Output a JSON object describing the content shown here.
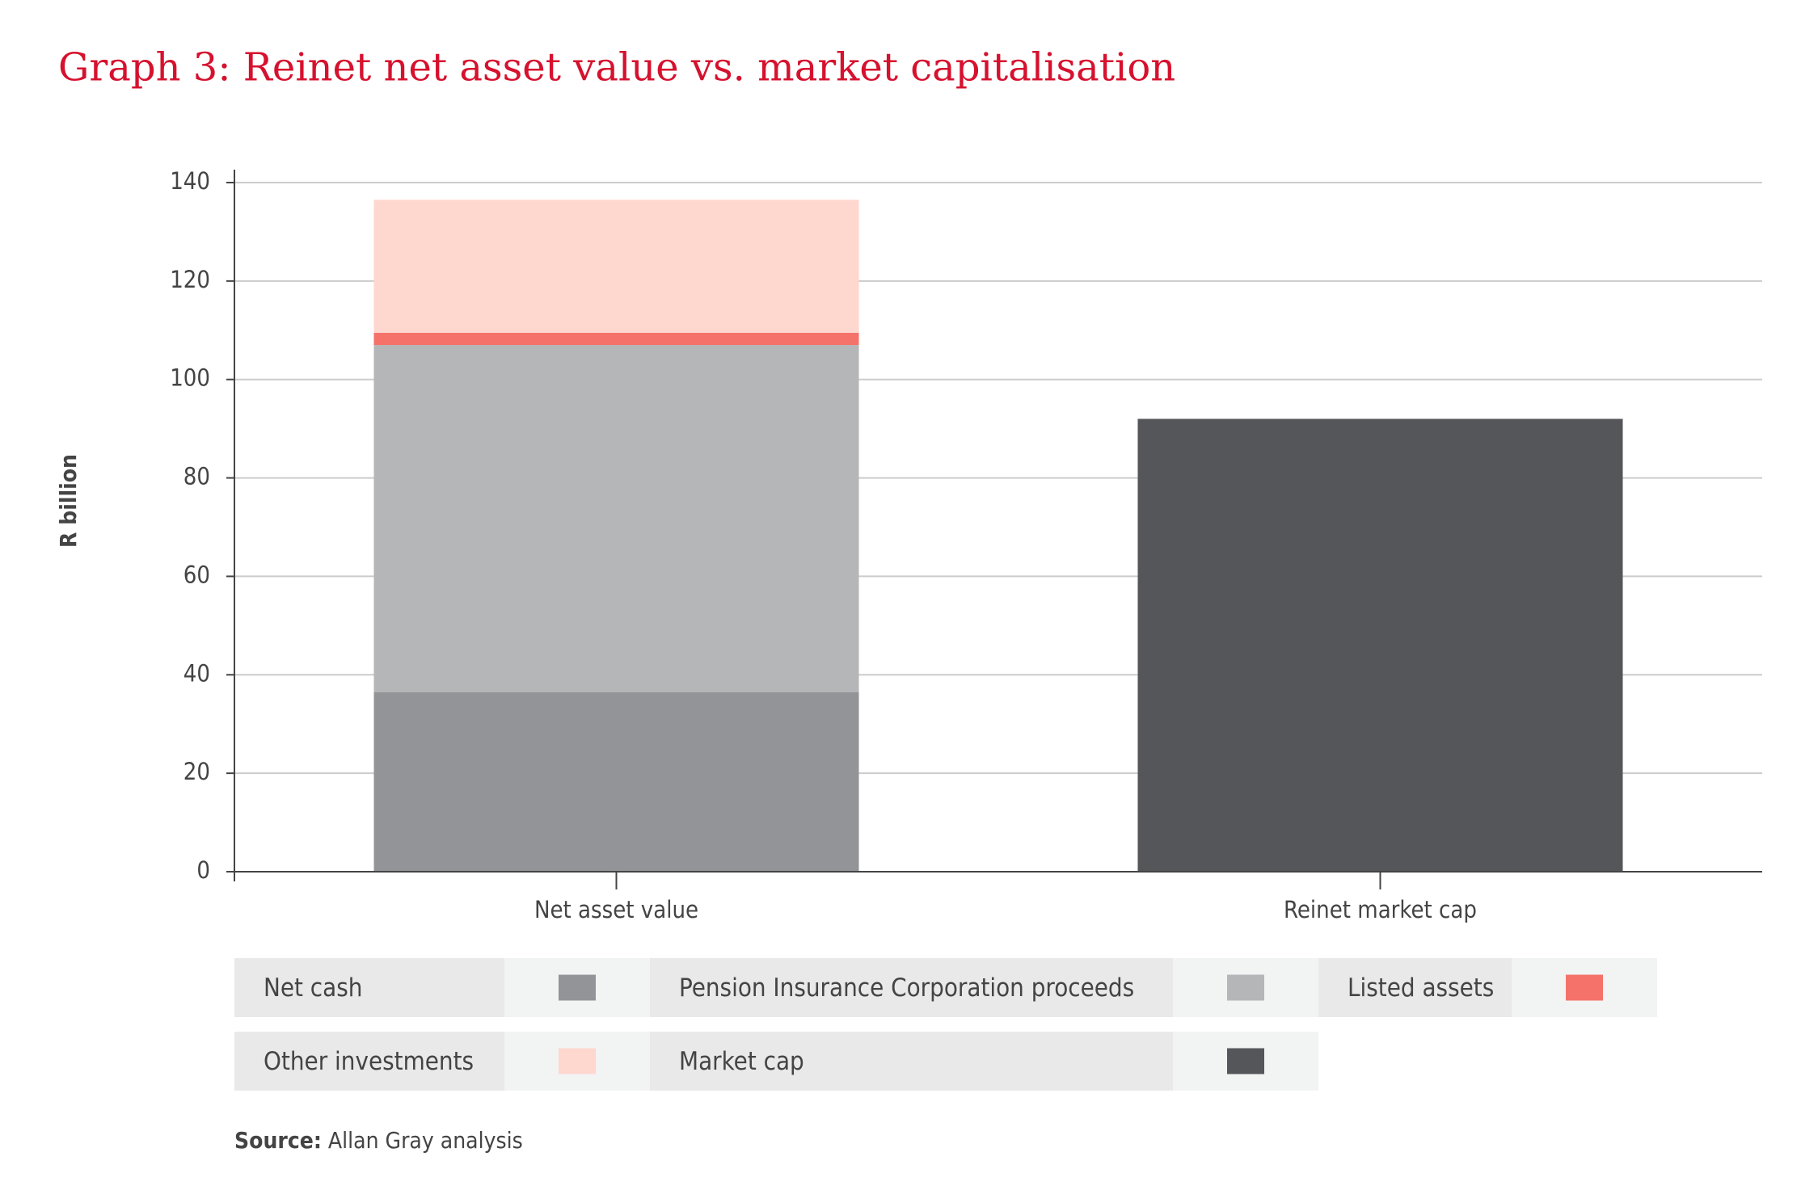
{
  "chart_data": {
    "type": "stacked_bar",
    "title": "Graph 3: Reinet net asset value vs. market capitalisation",
    "y_label": "R billion",
    "categories": [
      "Net asset value",
      "Reinet market cap"
    ],
    "series": [
      {
        "name": "Net cash",
        "color": "#939497",
        "values": [
          36.5,
          null
        ]
      },
      {
        "name": "Pension Insurance Corporation proceeds",
        "color": "#b5b6b8",
        "values": [
          70.5,
          null
        ]
      },
      {
        "name": "Listed assets",
        "color": "#f4726a",
        "values": [
          2.5,
          null
        ]
      },
      {
        "name": "Other investments",
        "color": "#fed7cf",
        "values": [
          27,
          null
        ]
      },
      {
        "name": "Market cap",
        "color": "#55565a",
        "values": [
          null,
          92
        ]
      }
    ],
    "ylim": [
      0,
      140
    ],
    "yticks": [
      0,
      20,
      40,
      60,
      80,
      100,
      120,
      140
    ],
    "grid": true,
    "source_label": "Source:",
    "source_text": "Allan Gray analysis"
  }
}
